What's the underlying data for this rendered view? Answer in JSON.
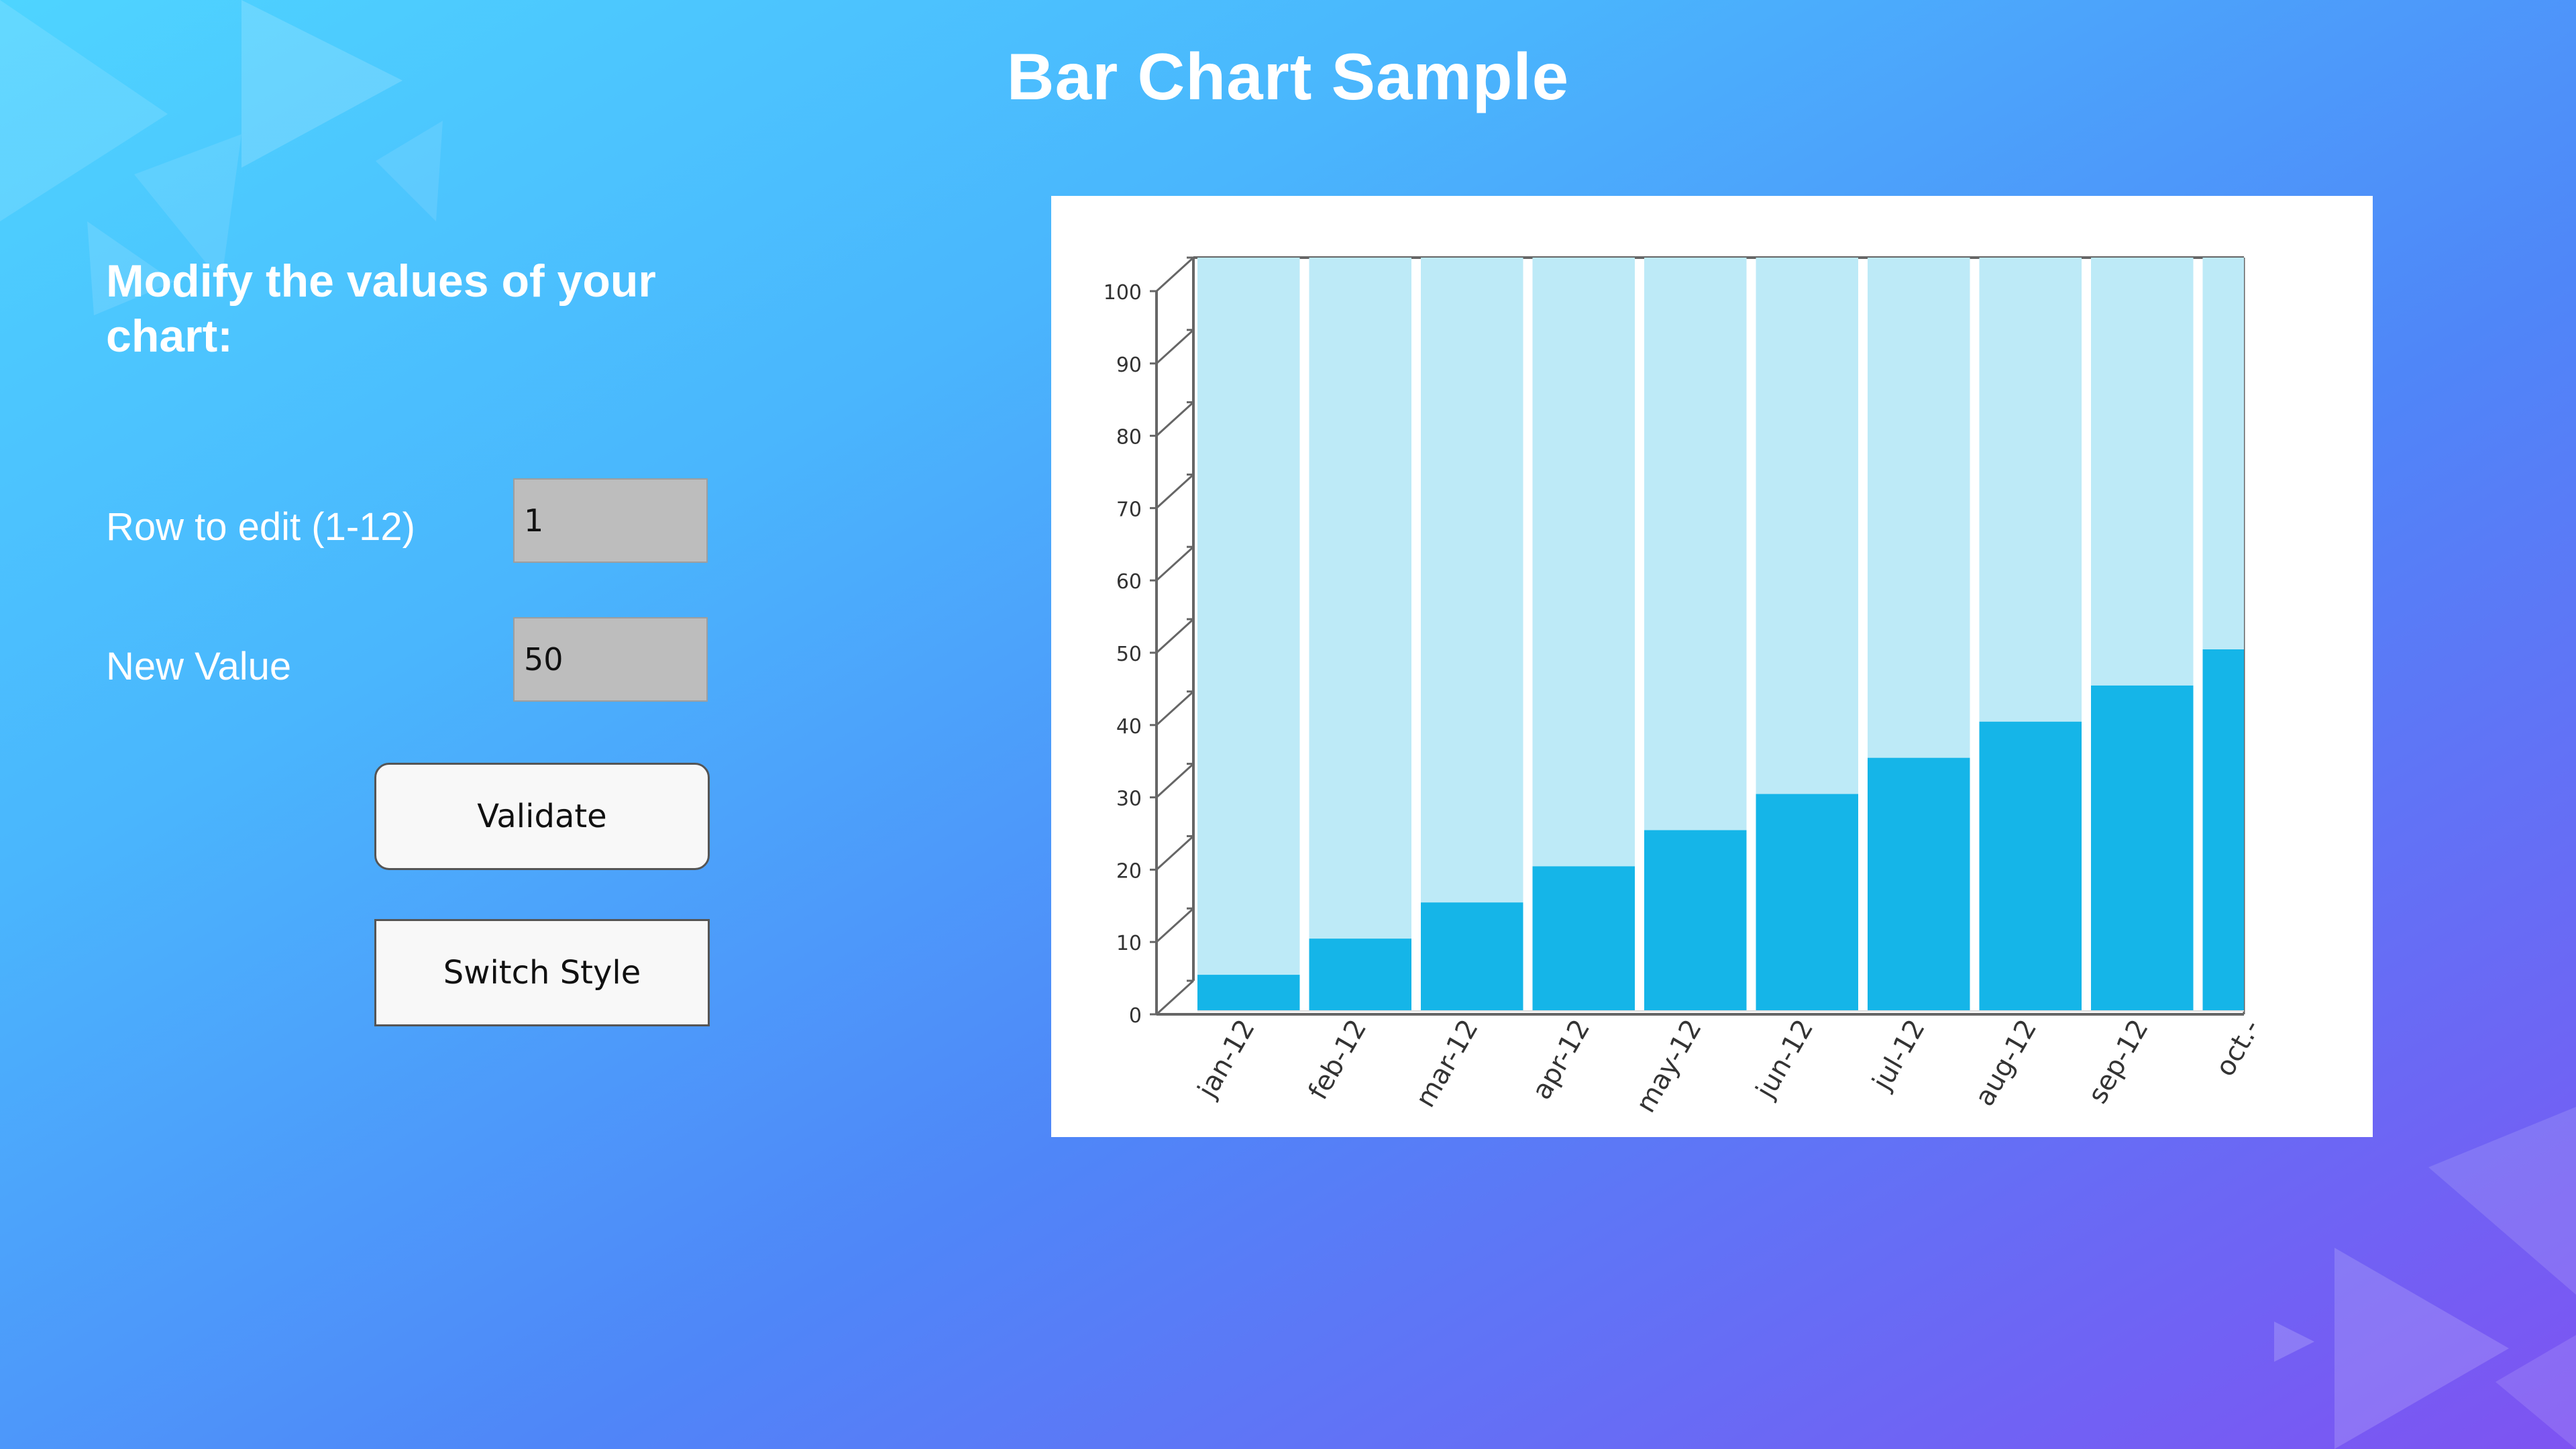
{
  "page": {
    "title": "Bar Chart Sample"
  },
  "panel": {
    "heading": "Modify the values of your chart:",
    "row_label": "Row to edit (1-12)",
    "row_value": "1",
    "value_label": "New Value",
    "value_value": "50",
    "validate_label": "Validate",
    "switch_label": "Switch Style"
  },
  "colors": {
    "bar_fill": "#15b5e8",
    "bar_background": "#bdeaf7",
    "axis": "#666666"
  },
  "chart_data": {
    "type": "bar",
    "categories": [
      "jan-12",
      "feb-12",
      "mar-12",
      "apr-12",
      "may-12",
      "jun-12",
      "jul-12",
      "aug-12",
      "sep-12",
      "oct.-"
    ],
    "values": [
      5,
      10,
      15,
      20,
      25,
      30,
      35,
      40,
      45,
      50
    ],
    "background_values": [
      100,
      100,
      100,
      100,
      100,
      100,
      100,
      100,
      100,
      100
    ],
    "yticks": [
      "0",
      "10",
      "20",
      "30",
      "40",
      "50",
      "60",
      "70",
      "80",
      "90",
      "100"
    ],
    "ylim": [
      0,
      100
    ],
    "grid": false,
    "legend": "none",
    "title": "",
    "xlabel": "",
    "ylabel": ""
  }
}
